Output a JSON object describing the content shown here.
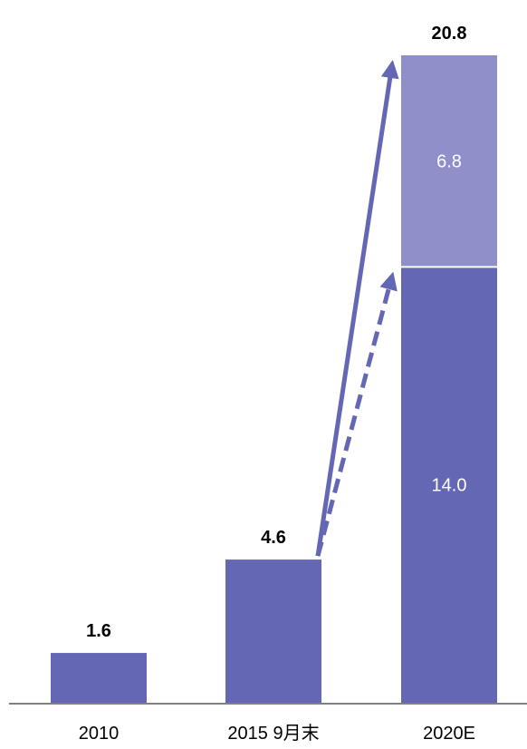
{
  "chart_data": {
    "type": "bar",
    "stacked": true,
    "categories": [
      "2010",
      "2015 9月末",
      "2020E"
    ],
    "series": [
      {
        "values": [
          1.6,
          4.6,
          14.0
        ]
      },
      {
        "values": [
          0,
          0,
          6.8
        ]
      }
    ],
    "totals": [
      1.6,
      4.6,
      20.8
    ],
    "data_labels": {
      "totals": [
        "1.6",
        "4.6",
        "20.8"
      ],
      "segments_2020E": [
        "14.0",
        "6.8"
      ]
    },
    "ylim": [
      0,
      20.8
    ],
    "grid": false,
    "legend": "none",
    "annotations": [
      {
        "type": "arrow",
        "style": "solid",
        "from_category": "2015 9月末",
        "from_value": 4.6,
        "to_category": "2020E",
        "to_value": 20.8
      },
      {
        "type": "arrow",
        "style": "dashed",
        "from_category": "2015 9月末",
        "from_value": 4.6,
        "to_category": "2020E",
        "to_value": 14.0
      }
    ],
    "colors": {
      "base": "#6367B4",
      "stack": "#8F90C9",
      "arrow": "#6367B4",
      "axis": "#808080",
      "label_dark": "#000000",
      "label_light": "#ffffff"
    }
  }
}
